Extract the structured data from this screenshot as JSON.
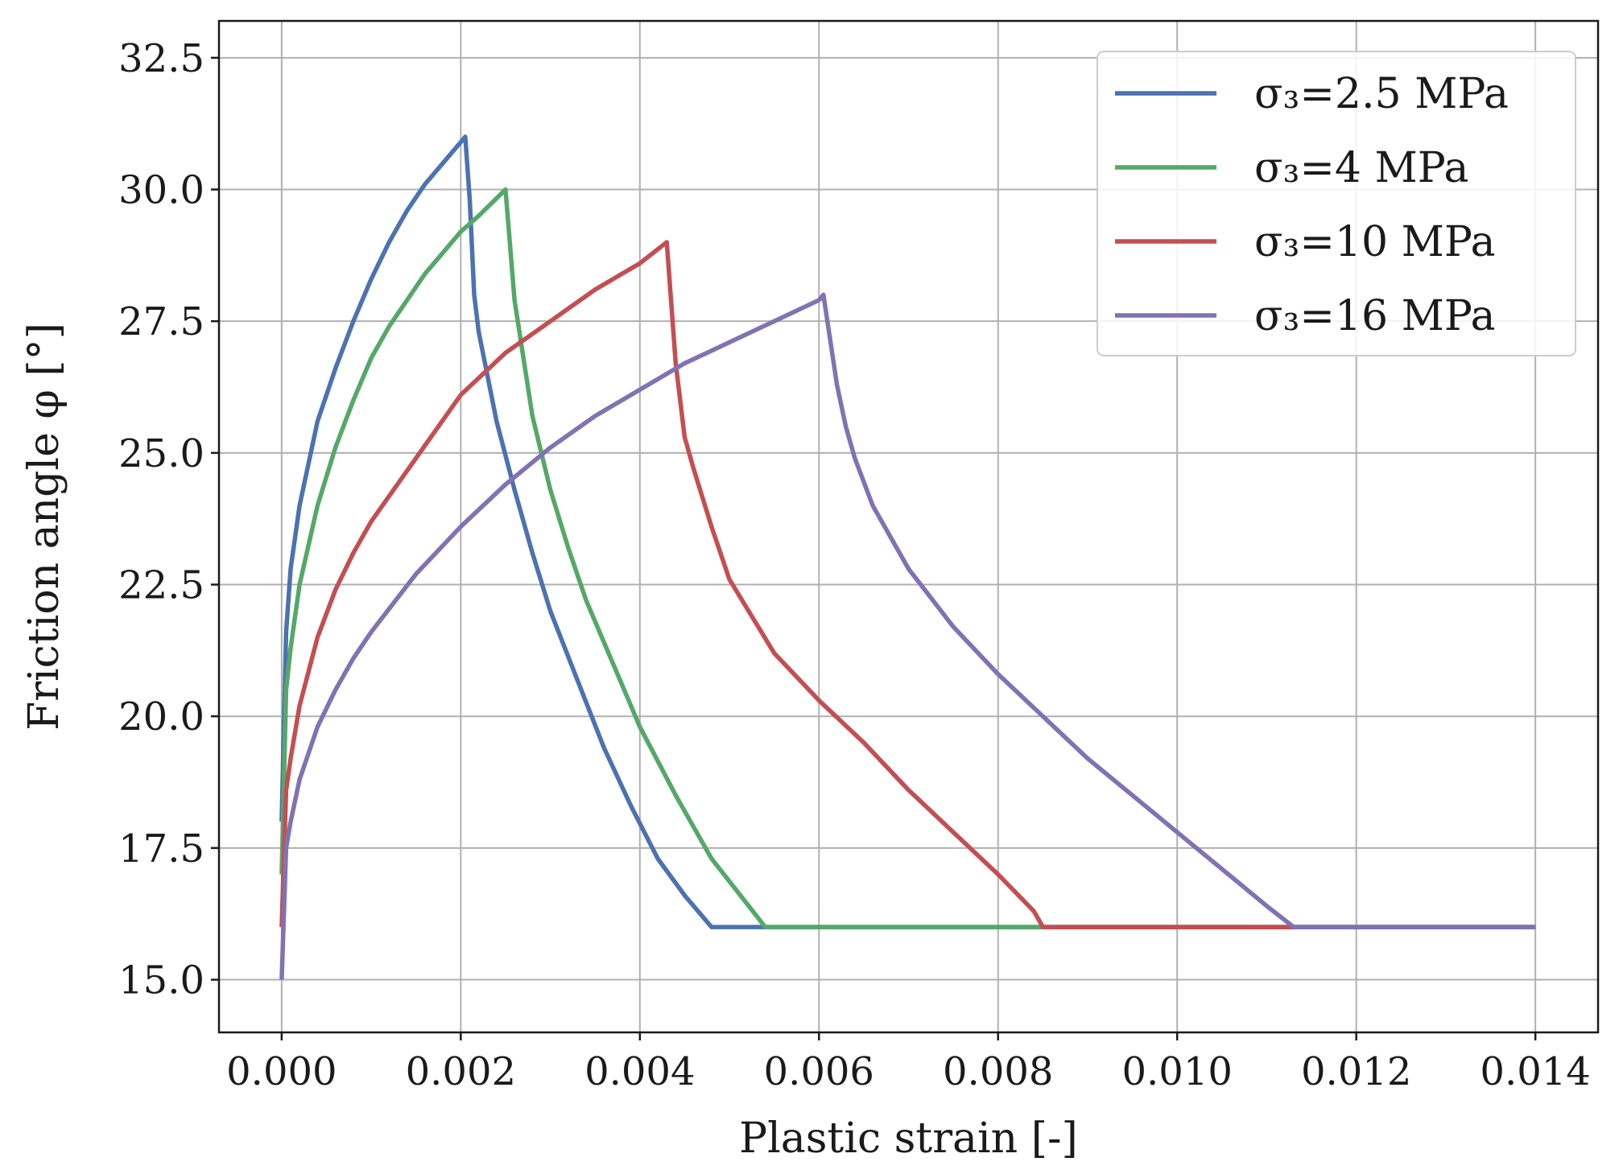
{
  "chart_data": {
    "type": "line",
    "xlabel": "Plastic strain [-]",
    "ylabel": "Friction angle φ [°]",
    "xlim": [
      -0.0007,
      0.0147
    ],
    "ylim": [
      14.0,
      33.2
    ],
    "x_ticks": [
      0.0,
      0.002,
      0.004,
      0.006,
      0.008,
      0.01,
      0.012,
      0.014
    ],
    "x_tick_labels": [
      "0.000",
      "0.002",
      "0.004",
      "0.006",
      "0.008",
      "0.010",
      "0.012",
      "0.014"
    ],
    "y_ticks": [
      15.0,
      17.5,
      20.0,
      22.5,
      25.0,
      27.5,
      30.0,
      32.5
    ],
    "y_tick_labels": [
      "15.0",
      "17.5",
      "20.0",
      "22.5",
      "25.0",
      "27.5",
      "30.0",
      "32.5"
    ],
    "grid": true,
    "legend_position": "top-right",
    "series": [
      {
        "name": "σ₃=2.5 MPa",
        "color": "#4c72b0",
        "x": [
          0.0,
          5e-05,
          0.0001,
          0.0002,
          0.0004,
          0.0006,
          0.0008,
          0.001,
          0.0012,
          0.0014,
          0.0016,
          0.0018,
          0.00205,
          0.0021,
          0.00215,
          0.0022,
          0.0024,
          0.0026,
          0.0028,
          0.003,
          0.0033,
          0.0036,
          0.0039,
          0.0042,
          0.0045,
          0.0048,
          0.014
        ],
        "y": [
          18.0,
          21.6,
          22.8,
          24.0,
          25.6,
          26.6,
          27.5,
          28.3,
          29.0,
          29.6,
          30.1,
          30.5,
          31.0,
          29.8,
          28.0,
          27.3,
          25.6,
          24.3,
          23.1,
          22.0,
          20.7,
          19.4,
          18.3,
          17.3,
          16.6,
          16.0,
          16.0
        ]
      },
      {
        "name": "σ₃=4 MPa",
        "color": "#55a868",
        "x": [
          0.0,
          5e-05,
          0.0001,
          0.0002,
          0.0004,
          0.0006,
          0.0008,
          0.001,
          0.0012,
          0.0014,
          0.0016,
          0.0018,
          0.002,
          0.0022,
          0.0025,
          0.0026,
          0.0027,
          0.0028,
          0.003,
          0.0032,
          0.0034,
          0.0036,
          0.0038,
          0.004,
          0.0044,
          0.0048,
          0.0054,
          0.014
        ],
        "y": [
          17.0,
          20.5,
          21.3,
          22.5,
          24.0,
          25.1,
          26.0,
          26.8,
          27.4,
          27.9,
          28.4,
          28.8,
          29.2,
          29.5,
          30.0,
          27.9,
          26.8,
          25.7,
          24.3,
          23.2,
          22.2,
          21.4,
          20.6,
          19.8,
          18.5,
          17.3,
          16.0,
          16.0
        ]
      },
      {
        "name": "σ₃=10 MPa",
        "color": "#c44e52",
        "x": [
          0.0,
          5e-05,
          0.0001,
          0.0002,
          0.0004,
          0.0006,
          0.0008,
          0.001,
          0.0015,
          0.002,
          0.0025,
          0.003,
          0.0035,
          0.004,
          0.0043,
          0.0044,
          0.0045,
          0.0046,
          0.0048,
          0.005,
          0.0055,
          0.006,
          0.0065,
          0.007,
          0.0075,
          0.008,
          0.0084,
          0.0085,
          0.014
        ],
        "y": [
          16.0,
          18.6,
          19.2,
          20.2,
          21.5,
          22.4,
          23.1,
          23.7,
          24.9,
          26.1,
          26.9,
          27.5,
          28.1,
          28.6,
          29.0,
          26.7,
          25.3,
          24.7,
          23.6,
          22.6,
          21.2,
          20.3,
          19.5,
          18.6,
          17.8,
          17.0,
          16.3,
          16.0,
          16.0
        ]
      },
      {
        "name": "σ₃=16 MPa",
        "color": "#8172b2",
        "x": [
          0.0,
          5e-05,
          0.0001,
          0.0002,
          0.0004,
          0.0006,
          0.0008,
          0.001,
          0.0015,
          0.002,
          0.0025,
          0.003,
          0.0035,
          0.004,
          0.0045,
          0.005,
          0.0055,
          0.006,
          0.00605,
          0.0062,
          0.0063,
          0.0064,
          0.0066,
          0.0068,
          0.007,
          0.0075,
          0.008,
          0.0085,
          0.009,
          0.0095,
          0.01,
          0.0105,
          0.011,
          0.0113,
          0.014
        ],
        "y": [
          15.0,
          17.5,
          18.0,
          18.8,
          19.8,
          20.5,
          21.1,
          21.6,
          22.7,
          23.6,
          24.4,
          25.1,
          25.7,
          26.2,
          26.7,
          27.1,
          27.5,
          27.9,
          28.0,
          26.3,
          25.5,
          24.9,
          24.0,
          23.4,
          22.8,
          21.7,
          20.8,
          20.0,
          19.2,
          18.5,
          17.8,
          17.1,
          16.4,
          16.0,
          16.0
        ]
      }
    ]
  }
}
